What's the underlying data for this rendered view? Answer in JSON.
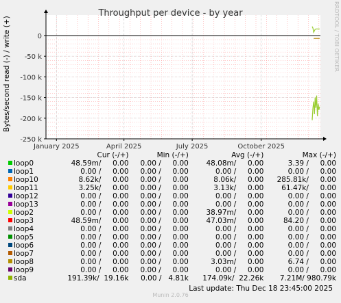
{
  "title": "Throughput per device - by year",
  "ylabel": "Bytes/second read (-) / write (+)",
  "side_label": "RRDTOOL / TOBI OETIKER",
  "footer": "Munin 2.0.76",
  "last_update": "Last update: Thu Dec 18 23:45:00 2025",
  "colors": {
    "background": "#F0F0F0",
    "plot_background": "#FFFFFF",
    "grid_minor": "#FF9999",
    "grid_major": "#CCCCCC",
    "axis": "#000000"
  },
  "chart_data": {
    "type": "line",
    "title": "Throughput per device - by year",
    "ylabel": "Bytes/second read (-) / write (+)",
    "ylim": [
      -250000,
      30000
    ],
    "yticks": [
      0,
      -50000,
      -100000,
      -150000,
      -200000,
      -250000
    ],
    "ytick_labels": [
      "0",
      "-50 k",
      "-100 k",
      "-150 k",
      "-200 k",
      "-250 k"
    ],
    "xlim": [
      "2024-12-18",
      "2025-12-19"
    ],
    "xticks": [
      "2025-01-01",
      "2025-04-01",
      "2025-07-01",
      "2025-10-01"
    ],
    "xtick_labels": [
      "January 2025",
      "April 2025",
      "July 2025",
      "October 2025"
    ],
    "grid": true,
    "series": [
      {
        "name": "sda",
        "color": "#9ACD32",
        "points": [
          [
            "2025-12-08",
            -205000
          ],
          [
            "2025-12-09",
            -175000
          ],
          [
            "2025-12-10",
            -160000
          ],
          [
            "2025-12-11",
            -190000
          ],
          [
            "2025-12-12",
            -150000
          ],
          [
            "2025-12-13",
            -175000
          ],
          [
            "2025-12-14",
            -145000
          ],
          [
            "2025-12-15",
            -195000
          ],
          [
            "2025-12-16",
            -165000
          ],
          [
            "2025-12-17",
            -180000
          ],
          [
            "2025-12-18",
            -172000
          ]
        ],
        "points_write": [
          [
            "2025-12-08",
            22000
          ],
          [
            "2025-12-09",
            18000
          ],
          [
            "2025-12-10",
            8000
          ],
          [
            "2025-12-11",
            12000
          ],
          [
            "2025-12-12",
            15000
          ],
          [
            "2025-12-13",
            16000
          ],
          [
            "2025-12-18",
            16000
          ]
        ]
      },
      {
        "name": "loop8",
        "color": "#B8860B",
        "points_write": [
          [
            "2025-12-10",
            -7000
          ],
          [
            "2025-12-18",
            -7000
          ]
        ]
      }
    ]
  },
  "legend": {
    "headers": {
      "cur": "Cur (-/+)",
      "min": "Min (-/+)",
      "avg": "Avg (-/+)",
      "max": "Max (-/+)"
    },
    "rows": [
      {
        "name": "loop0",
        "color": "#00CC00",
        "cur": "48.59m/     0.00",
        "min": "0.00 /     0.00",
        "avg": "48.08m/     0.00",
        "max": "3.39 /     0.00"
      },
      {
        "name": "loop1",
        "color": "#0066B3",
        "cur": "0.00 /     0.00",
        "min": "0.00 /     0.00",
        "avg": "0.00 /     0.00",
        "max": "0.00 /     0.00"
      },
      {
        "name": "loop10",
        "color": "#FF8000",
        "cur": "8.62k/     0.00",
        "min": "0.00 /     0.00",
        "avg": "8.06k/     0.00",
        "max": "285.81k/     0.00"
      },
      {
        "name": "loop11",
        "color": "#FFCC00",
        "cur": "3.25k/     0.00",
        "min": "0.00 /     0.00",
        "avg": "3.13k/     0.00",
        "max": "61.47k/     0.00"
      },
      {
        "name": "loop12",
        "color": "#330099",
        "cur": "0.00 /     0.00",
        "min": "0.00 /     0.00",
        "avg": "0.00 /     0.00",
        "max": "0.00 /     0.00"
      },
      {
        "name": "loop13",
        "color": "#990099",
        "cur": "0.00 /     0.00",
        "min": "0.00 /     0.00",
        "avg": "0.00 /     0.00",
        "max": "0.00 /     0.00"
      },
      {
        "name": "loop2",
        "color": "#CCFF00",
        "cur": "0.00 /     0.00",
        "min": "0.00 /     0.00",
        "avg": "38.97m/     0.00",
        "max": "0.00 /     0.00"
      },
      {
        "name": "loop3",
        "color": "#FF0000",
        "cur": "48.59m/     0.00",
        "min": "0.00 /     0.00",
        "avg": "47.03m/     0.00",
        "max": "84.20 /     0.00"
      },
      {
        "name": "loop4",
        "color": "#808080",
        "cur": "0.00 /     0.00",
        "min": "0.00 /     0.00",
        "avg": "0.00 /     0.00",
        "max": "0.00 /     0.00"
      },
      {
        "name": "loop5",
        "color": "#008F00",
        "cur": "0.00 /     0.00",
        "min": "0.00 /     0.00",
        "avg": "0.00 /     0.00",
        "max": "0.00 /     0.00"
      },
      {
        "name": "loop6",
        "color": "#00487D",
        "cur": "0.00 /     0.00",
        "min": "0.00 /     0.00",
        "avg": "0.00 /     0.00",
        "max": "0.00 /     0.00"
      },
      {
        "name": "loop7",
        "color": "#B35A00",
        "cur": "0.00 /     0.00",
        "min": "0.00 /     0.00",
        "avg": "0.00 /     0.00",
        "max": "0.00 /     0.00"
      },
      {
        "name": "loop8",
        "color": "#B38F00",
        "cur": "0.00 /     0.00",
        "min": "0.00 /     0.00",
        "avg": "3.03m/     0.00",
        "max": "6.74 /     0.00"
      },
      {
        "name": "loop9",
        "color": "#6B006B",
        "cur": "0.00 /     0.00",
        "min": "0.00 /     0.00",
        "avg": "0.00 /     0.00",
        "max": "0.00 /     0.00"
      },
      {
        "name": "sda",
        "color": "#8FB300",
        "cur": "191.39k/  19.16k",
        "min": "0.00 /   4.81k",
        "avg": "174.09k/  22.26k",
        "max": "7.21M/ 980.79k"
      }
    ]
  }
}
